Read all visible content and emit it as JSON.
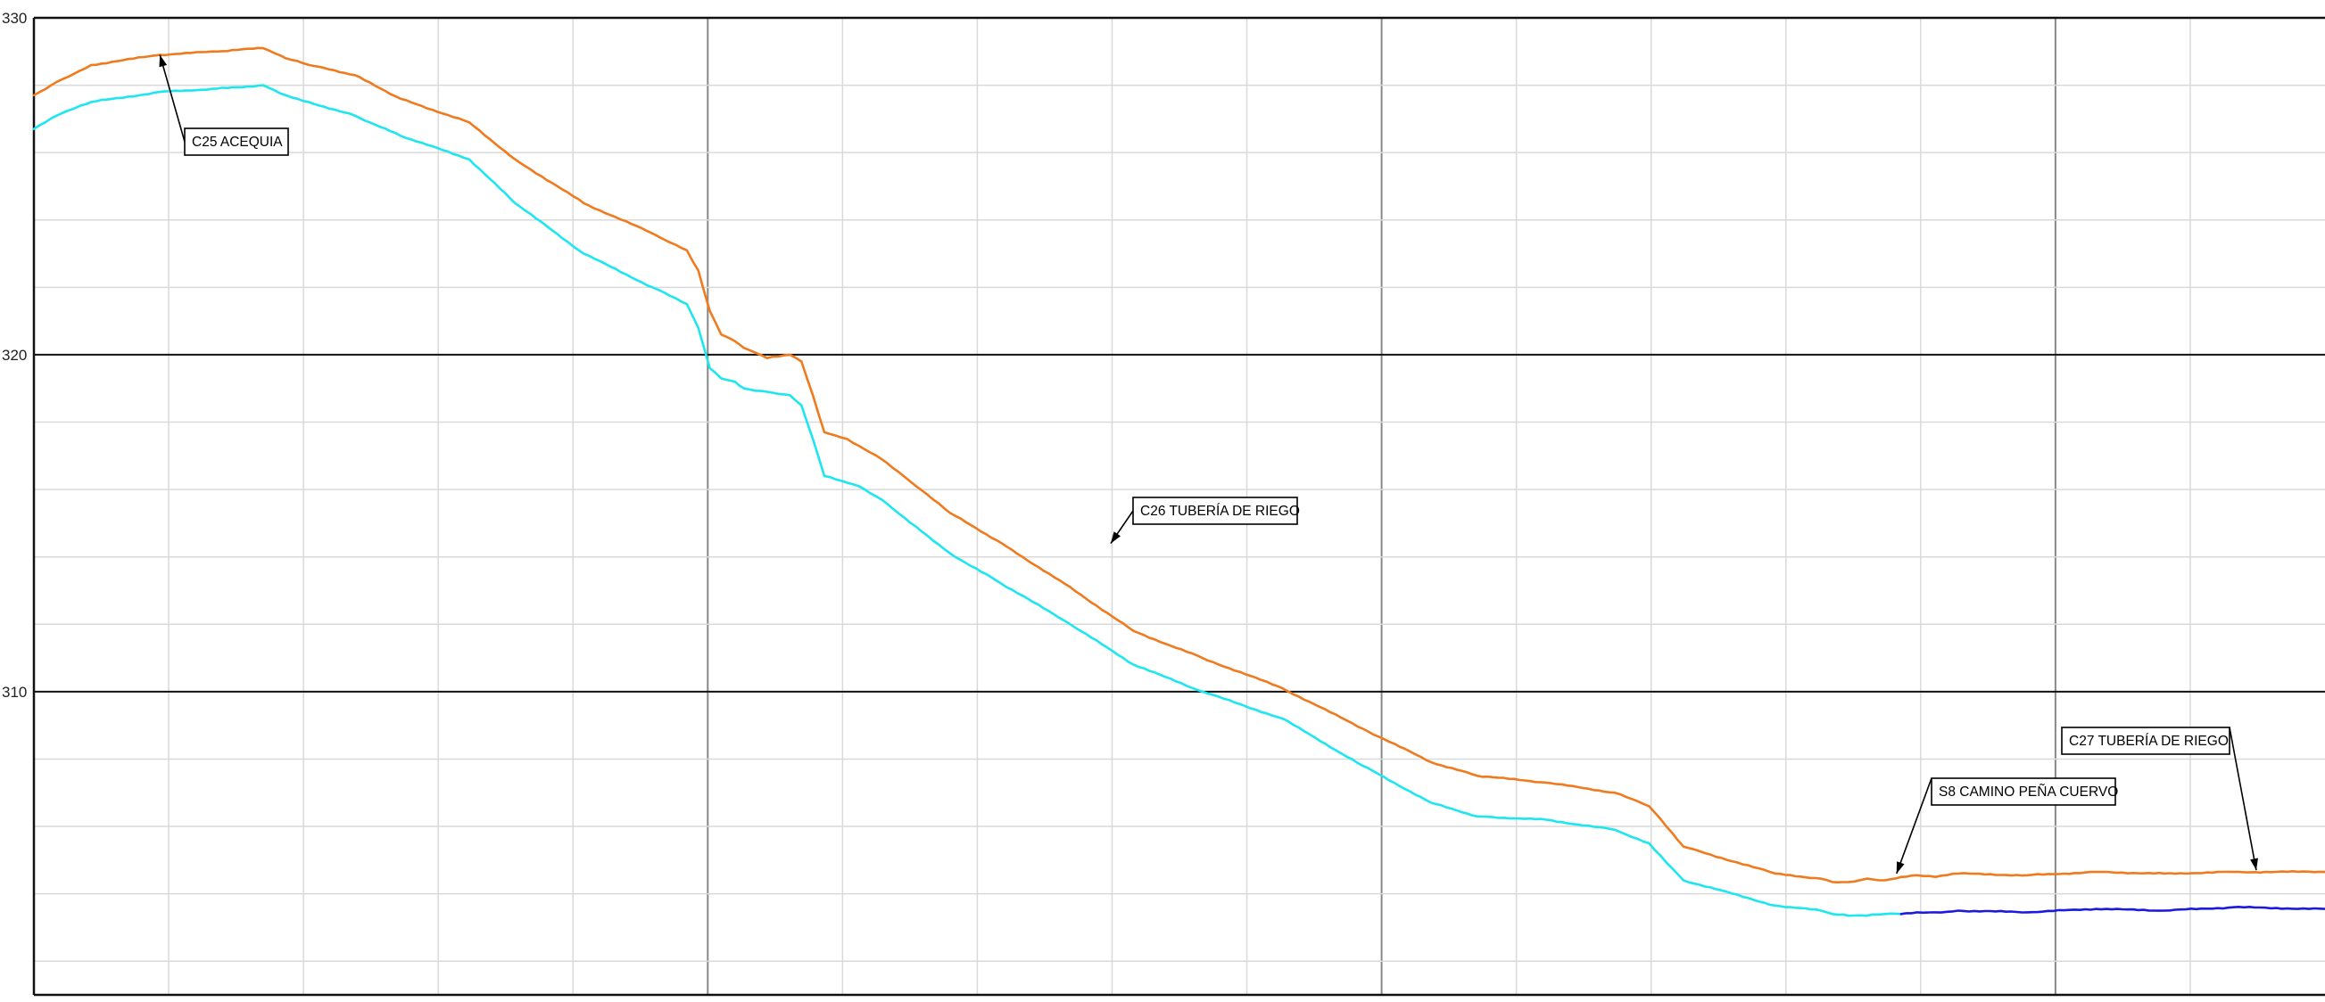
{
  "chart_data": {
    "type": "line",
    "title": "",
    "xlabel": "",
    "ylabel": "",
    "xlim": [
      0,
      1000
    ],
    "ylim": [
      301,
      330
    ],
    "yticks": [
      310,
      320,
      330
    ],
    "ytick_labels": [
      "310",
      "320",
      "330"
    ],
    "grid": true,
    "legend": "none",
    "series": [
      {
        "color": "#f07a1e",
        "x": [
          0,
          10,
          25,
          55,
          80,
          100,
          110,
          120,
          140,
          160,
          190,
          210,
          240,
          270,
          285,
          290,
          295,
          300,
          306,
          310,
          320,
          330,
          335,
          340,
          345,
          350,
          355,
          360,
          370,
          385,
          400,
          420,
          450,
          480,
          510,
          545,
          580,
          610,
          630,
          660,
          690,
          705,
          720,
          760,
          780,
          785,
          792,
          800,
          808,
          815,
          822,
          830,
          840,
          870,
          900,
          930,
          960,
          1000
        ],
        "y": [
          327.7,
          328.1,
          328.6,
          328.9,
          329.0,
          329.1,
          328.8,
          328.6,
          328.3,
          327.6,
          326.9,
          325.8,
          324.5,
          323.6,
          323.1,
          322.5,
          321.3,
          320.6,
          320.4,
          320.2,
          319.9,
          320.0,
          319.8,
          318.8,
          317.7,
          317.6,
          317.5,
          317.3,
          316.9,
          316.1,
          315.3,
          314.5,
          313.2,
          311.8,
          311.0,
          310.1,
          308.9,
          307.9,
          307.5,
          307.3,
          307.0,
          306.6,
          305.4,
          304.6,
          304.45,
          304.35,
          304.35,
          304.45,
          304.4,
          304.5,
          304.55,
          304.5,
          304.6,
          304.55,
          304.65,
          304.6,
          304.65,
          304.65
        ]
      },
      {
        "color": "#1ee6f0",
        "x": [
          0,
          10,
          25,
          55,
          80,
          100,
          110,
          120,
          140,
          160,
          190,
          210,
          240,
          270,
          285,
          290,
          295,
          300,
          306,
          310,
          320,
          330,
          335,
          340,
          345,
          350,
          355,
          360,
          370,
          385,
          400,
          420,
          450,
          480,
          510,
          545,
          580,
          610,
          630,
          660,
          690,
          705,
          720,
          760,
          780,
          785,
          792,
          800,
          808,
          815
        ],
        "y": [
          326.7,
          327.1,
          327.5,
          327.8,
          327.9,
          328.0,
          327.7,
          327.5,
          327.1,
          326.5,
          325.8,
          324.5,
          323.0,
          322.0,
          321.5,
          320.8,
          319.6,
          319.3,
          319.2,
          319.0,
          318.9,
          318.8,
          318.5,
          317.5,
          316.4,
          316.3,
          316.2,
          316.1,
          315.7,
          314.9,
          314.1,
          313.3,
          312.1,
          310.8,
          310.0,
          309.2,
          307.8,
          306.7,
          306.3,
          306.2,
          305.9,
          305.5,
          304.4,
          303.65,
          303.5,
          303.4,
          303.35,
          303.35,
          303.4,
          303.4
        ]
      },
      {
        "color": "#1a1ae0",
        "x": [
          815,
          822,
          830,
          840,
          870,
          900,
          930,
          960,
          1000
        ],
        "y": [
          303.4,
          303.45,
          303.45,
          303.5,
          303.45,
          303.55,
          303.5,
          303.6,
          303.55
        ]
      }
    ],
    "annotations": [
      {
        "text": "C25 ACEQUIA",
        "x": 55,
        "y": 328.9
      },
      {
        "text": "C26 TUBERÍA DE RIEGO",
        "x": 470,
        "y": 314.4
      },
      {
        "text": "S8 CAMINO PEÑA CUERVO",
        "x": 813,
        "y": 304.6
      },
      {
        "text": "C27 TUBERÍA DE RIEGO",
        "x": 970,
        "y": 304.7
      }
    ]
  }
}
